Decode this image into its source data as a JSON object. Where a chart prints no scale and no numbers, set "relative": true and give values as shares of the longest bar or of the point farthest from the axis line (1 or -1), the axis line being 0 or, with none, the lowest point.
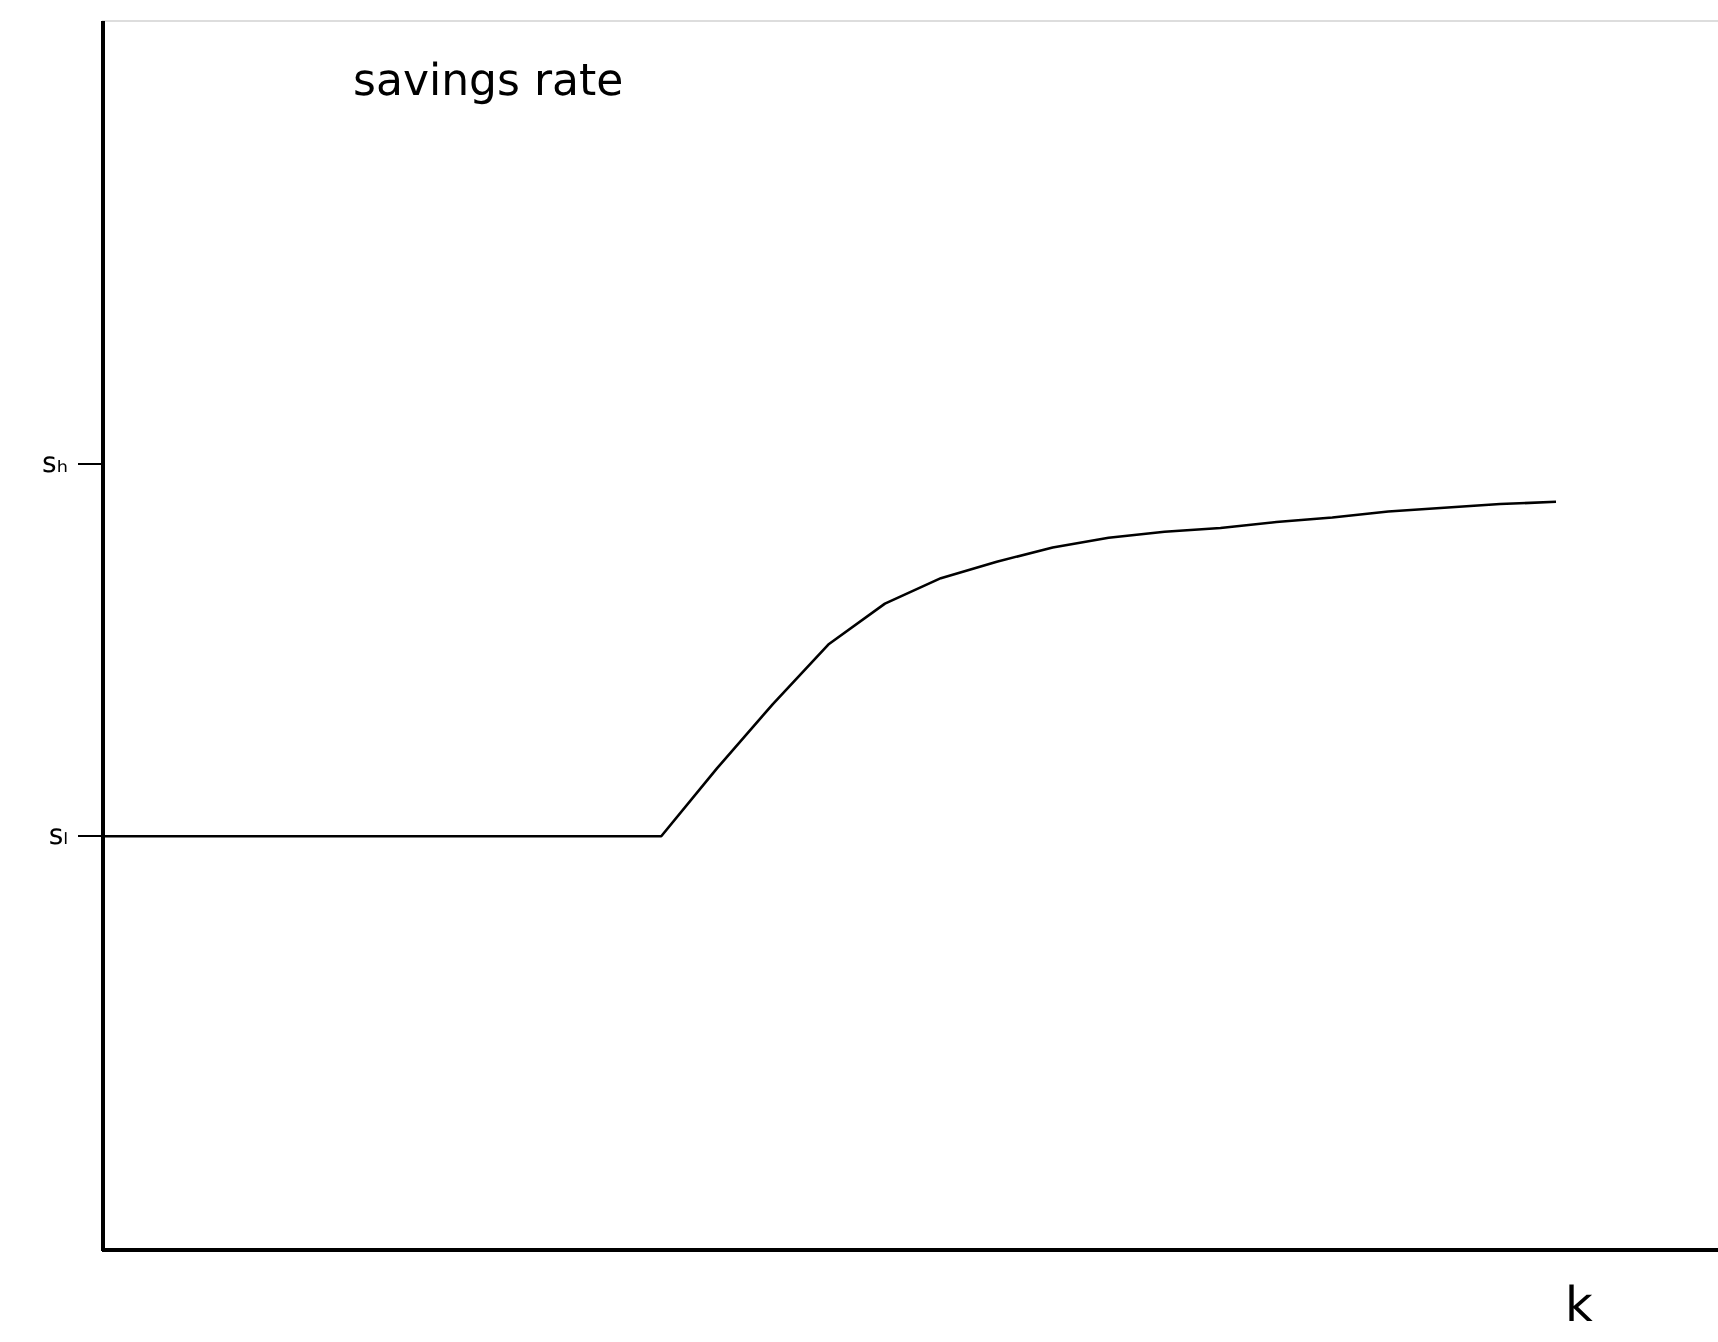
{
  "chart_data": {
    "type": "line",
    "relative": true,
    "xlabel": "k",
    "ylabel": "savings rate",
    "categories": [
      null,
      null,
      null,
      null,
      null,
      null,
      null,
      null,
      null,
      null,
      null,
      null,
      null,
      null,
      null,
      null,
      null,
      null,
      null,
      null,
      null,
      null,
      null,
      null,
      null,
      null,
      null
    ],
    "ylim": [
      0,
      1.644
    ],
    "annotations": [
      "sₗ",
      "sₕ"
    ],
    "grid": false,
    "series": [
      {
        "color": "#000000",
        "values": [
          0.553,
          0.553,
          0.553,
          0.553,
          0.553,
          0.553,
          0.553,
          0.553,
          0.553,
          0.553,
          0.553,
          0.644,
          0.73,
          0.81,
          0.864,
          0.898,
          0.92,
          0.939,
          0.952,
          0.96,
          0.965,
          0.973,
          0.979,
          0.987,
          0.992,
          0.997,
          1
        ]
      }
    ]
  }
}
